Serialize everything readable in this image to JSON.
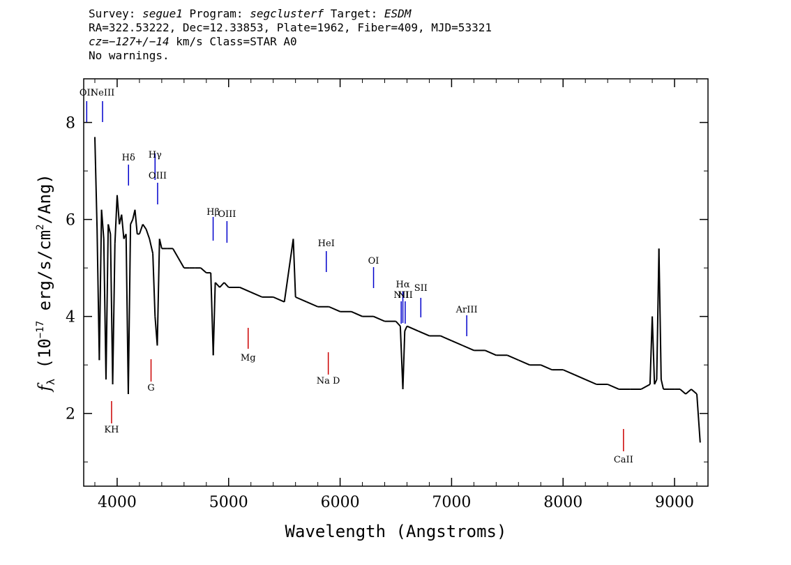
{
  "header": {
    "l1_a": "Survey: ",
    "survey": "segue1",
    "l1_b": " Program: ",
    "program": "segclusterf",
    "l1_c": " Target: ",
    "target": "ESDM",
    "line2": "RA=322.53222, Dec=12.33853, Plate=1962, Fiber=409, MJD=53321",
    "cz": "cz=−127+/−14",
    "l3_b": " km/s Class=STAR A0",
    "line4": "No warnings."
  },
  "chart_data": {
    "type": "line",
    "xlabel": "Wavelength (Angstroms)",
    "ylabel_prefix": "f",
    "ylabel_sub": "λ",
    "ylabel_main": " (10",
    "ylabel_exp": "−17",
    "ylabel_rest": " erg/s/cm",
    "ylabel_exp2": "2",
    "ylabel_end": "/Ang)",
    "xlim": [
      3700,
      9300
    ],
    "ylim": [
      0.5,
      8.9
    ],
    "x_ticks": [
      4000,
      5000,
      6000,
      7000,
      8000,
      9000
    ],
    "x_tick_labels": [
      "4000",
      "5000",
      "6000",
      "7000",
      "8000",
      "9000"
    ],
    "y_ticks": [
      2,
      4,
      6,
      8
    ],
    "y_tick_labels": [
      "2",
      "4",
      "6",
      "8"
    ],
    "series": [
      {
        "color": "#000000",
        "x": [
          3800,
          3820,
          3840,
          3860,
          3880,
          3900,
          3920,
          3940,
          3960,
          3980,
          4000,
          4020,
          4040,
          4060,
          4080,
          4100,
          4120,
          4140,
          4160,
          4180,
          4200,
          4230,
          4260,
          4290,
          4320,
          4340,
          4360,
          4380,
          4400,
          4450,
          4500,
          4550,
          4600,
          4650,
          4700,
          4750,
          4800,
          4840,
          4862,
          4880,
          4920,
          4960,
          5000,
          5100,
          5200,
          5300,
          5400,
          5500,
          5580,
          5600,
          5700,
          5800,
          5900,
          6000,
          6100,
          6200,
          6300,
          6400,
          6500,
          6540,
          6563,
          6580,
          6600,
          6700,
          6800,
          6900,
          7000,
          7100,
          7200,
          7300,
          7400,
          7500,
          7600,
          7700,
          7800,
          7900,
          8000,
          8100,
          8200,
          8300,
          8400,
          8500,
          8600,
          8700,
          8780,
          8800,
          8820,
          8840,
          8860,
          8880,
          8900,
          8950,
          9000,
          9050,
          9100,
          9150,
          9200,
          9230
        ],
        "y": [
          7.7,
          5.8,
          3.1,
          6.2,
          5.6,
          2.7,
          5.9,
          5.7,
          2.6,
          5.5,
          6.5,
          5.9,
          6.1,
          5.6,
          5.7,
          2.4,
          5.9,
          6.0,
          6.2,
          5.7,
          5.7,
          5.9,
          5.8,
          5.6,
          5.3,
          4.0,
          3.4,
          5.6,
          5.4,
          5.4,
          5.4,
          5.2,
          5.0,
          5.0,
          5.0,
          5.0,
          4.9,
          4.9,
          3.2,
          4.7,
          4.6,
          4.7,
          4.6,
          4.6,
          4.5,
          4.4,
          4.4,
          4.3,
          5.6,
          4.4,
          4.3,
          4.2,
          4.2,
          4.1,
          4.1,
          4.0,
          4.0,
          3.9,
          3.9,
          3.8,
          2.5,
          3.7,
          3.8,
          3.7,
          3.6,
          3.6,
          3.5,
          3.4,
          3.3,
          3.3,
          3.2,
          3.2,
          3.1,
          3.0,
          3.0,
          2.9,
          2.9,
          2.8,
          2.7,
          2.6,
          2.6,
          2.5,
          2.5,
          2.5,
          2.6,
          4.0,
          2.6,
          2.7,
          5.4,
          2.7,
          2.5,
          2.5,
          2.5,
          2.5,
          2.4,
          2.5,
          2.4,
          1.4
        ]
      }
    ],
    "lines": [
      {
        "label": "OII",
        "wave": 3727,
        "color": "#0000cc"
      },
      {
        "label": "NeIII",
        "wave": 3869,
        "color": "#0000cc"
      },
      {
        "label": "Hδ",
        "wave": 4102,
        "color": "#0000cc"
      },
      {
        "label": "Hγ",
        "wave": 4340,
        "color": "#0000cc"
      },
      {
        "label": "OIII",
        "wave": 4363,
        "color": "#0000cc"
      },
      {
        "label": "Hβ",
        "wave": 4861,
        "color": "#0000cc"
      },
      {
        "label": "OIII",
        "wave": 4985,
        "color": "#0000cc"
      },
      {
        "label": "HeI",
        "wave": 5876,
        "color": "#0000cc"
      },
      {
        "label": "OI",
        "wave": 6300,
        "color": "#0000cc"
      },
      {
        "label": "NII",
        "wave": 6548,
        "color": "#0000cc"
      },
      {
        "label": "Hα",
        "wave": 6563,
        "color": "#0000cc"
      },
      {
        "label": "NII",
        "wave": 6584,
        "color": "#0000cc"
      },
      {
        "label": "SII",
        "wave": 6724,
        "color": "#0000cc"
      },
      {
        "label": "ArIII",
        "wave": 7136,
        "color": "#0000cc"
      },
      {
        "label": "KH",
        "wave": 3950,
        "color": "#cc0000"
      },
      {
        "label": "G",
        "wave": 4304,
        "color": "#cc0000"
      },
      {
        "label": "Mg",
        "wave": 5175,
        "color": "#cc0000"
      },
      {
        "label": "Na D",
        "wave": 5894,
        "color": "#cc0000"
      },
      {
        "label": "CaII",
        "wave": 8542,
        "color": "#cc0000"
      }
    ]
  }
}
